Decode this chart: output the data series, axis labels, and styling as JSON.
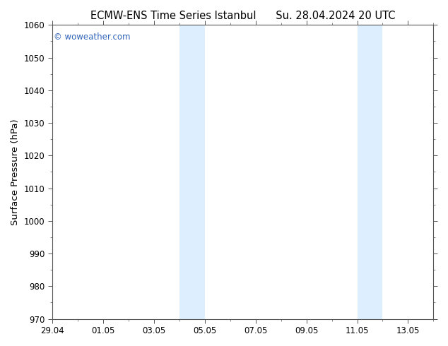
{
  "title_left": "ECMW-ENS Time Series Istanbul",
  "title_right": "Su. 28.04.2024 20 UTC",
  "ylabel": "Surface Pressure (hPa)",
  "ylim": [
    970,
    1060
  ],
  "yticks": [
    970,
    980,
    990,
    1000,
    1010,
    1020,
    1030,
    1040,
    1050,
    1060
  ],
  "xlim_start": 0.0,
  "xlim_end": 15.0,
  "xtick_labels": [
    "29.04",
    "01.05",
    "03.05",
    "05.05",
    "07.05",
    "09.05",
    "11.05",
    "13.05"
  ],
  "xtick_positions": [
    0,
    2,
    4,
    6,
    8,
    10,
    12,
    14
  ],
  "shaded_bands": [
    {
      "xstart": 5.0,
      "xend": 5.5
    },
    {
      "xstart": 5.5,
      "xend": 6.0
    },
    {
      "xstart": 12.0,
      "xend": 12.5
    },
    {
      "xstart": 12.5,
      "xend": 13.0
    }
  ],
  "watermark": "© woweather.com",
  "watermark_color": "#3366bb",
  "bg_color": "#ffffff",
  "plot_bg_color": "#ffffff",
  "band_color": "#ddeeff",
  "title_color": "#000000",
  "title_fontsize": 10.5,
  "tick_fontsize": 8.5,
  "ylabel_fontsize": 9.5,
  "spine_color": "#555555"
}
